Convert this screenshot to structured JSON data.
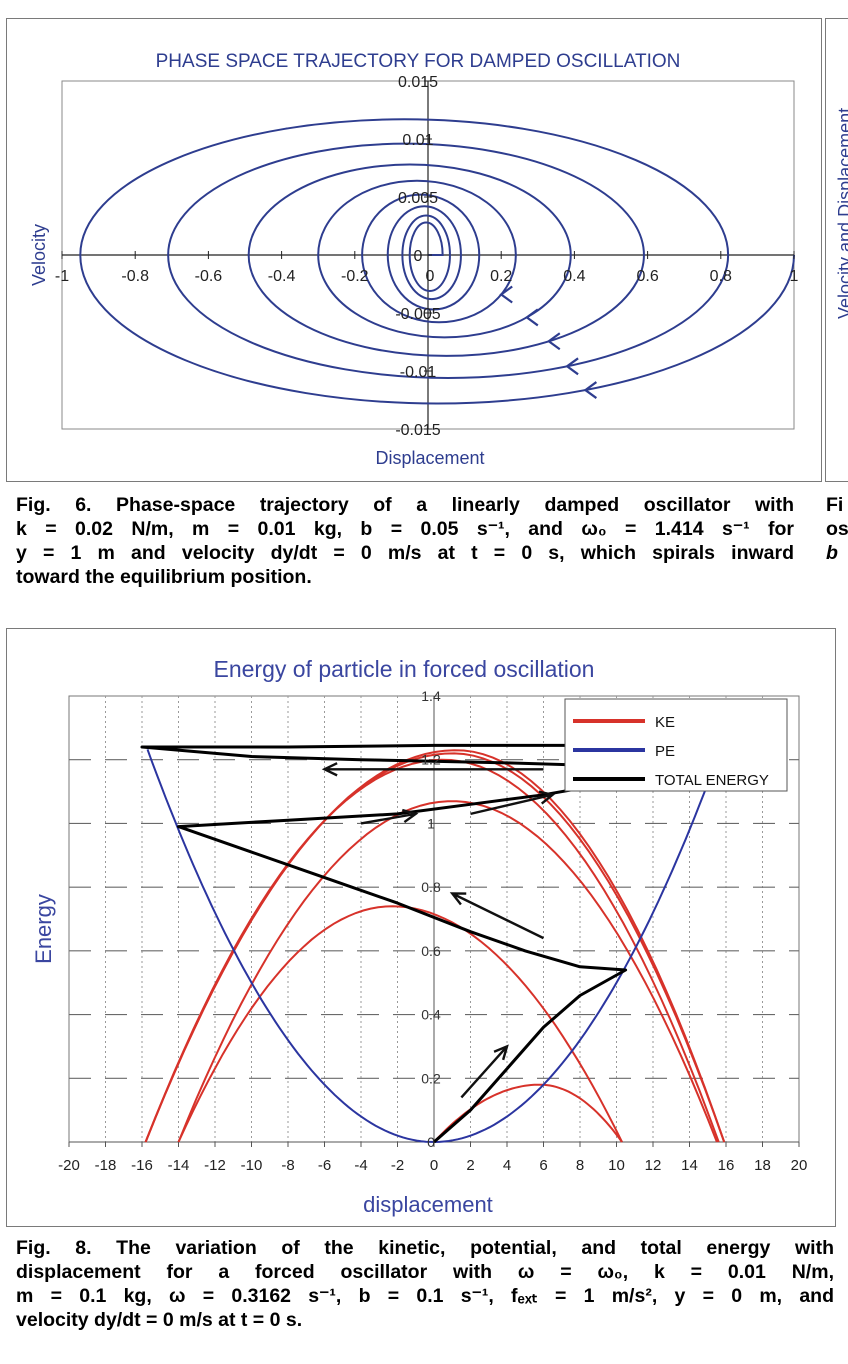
{
  "fig6": {
    "caption_lines": [
      "Fig. 6. Phase-space trajectory of a linearly damped oscillator with",
      "k = 0.02 N/m, m = 0.01 kg, b = 0.05 s⁻¹, and ω₀ = 1.414 s⁻¹ for",
      "y = 1 m and velocity dy/dt = 0 m/s at t = 0 s, which spirals inward",
      "toward the equilibrium position."
    ]
  },
  "fig8": {
    "caption_lines": [
      "Fig. 8. The variation of the kinetic, potential, and total energy with",
      "displacement for a forced oscillator with ω = ω₀, k = 0.01 N/m,",
      "m = 0.1 kg, ω = 0.3162 s⁻¹, b = 0.1 s⁻¹, fₑₓₜ = 1 m/s², y = 0 m, and",
      "velocity dy/dt = 0 m/s at t = 0 s."
    ]
  },
  "side": {
    "axis_label_fragment": "Velocity and Displacement",
    "caption_fragments": [
      "Fi",
      "os",
      "b"
    ]
  },
  "chart_data": [
    {
      "type": "line",
      "title": "PHASE SPACE TRAJECTORY FOR DAMPED OSCILLATION",
      "xlabel": "Displacement",
      "ylabel": "Velocity",
      "xlim": [
        -1,
        1
      ],
      "ylim": [
        -0.015,
        0.015
      ],
      "x_ticks": [
        "-1",
        "-0.8",
        "-0.6",
        "-0.4",
        "-0.2",
        "0",
        "0.2",
        "0.4",
        "0.6",
        "0.8",
        "1"
      ],
      "y_ticks": [
        "0.015",
        "0.01",
        "0.005",
        "0",
        "-0.005",
        "-0.01",
        "-0.015"
      ],
      "color": "#2e3d8f",
      "series": [
        {
          "trajectory": "inward spiral, clockwise",
          "start": [
            1,
            0
          ],
          "end": [
            0,
            0
          ],
          "turning_points_x": [
            1,
            -0.95,
            0.82,
            -0.71,
            0.59,
            -0.49,
            0.39,
            -0.3,
            0.24,
            -0.18,
            0.14,
            -0.11,
            0.09,
            -0.07,
            0.06,
            -0.05,
            0.04
          ],
          "peak_velocity_approx": [
            -0.0128,
            0.0117,
            -0.0106,
            0.0096,
            -0.0087,
            0.0078,
            -0.0071,
            0.0064,
            -0.0058,
            0.0052,
            -0.0047,
            0.0042,
            -0.0038,
            0.0034,
            -0.0031,
            0.0028
          ]
        }
      ],
      "annotations": [
        "arrows along lower half pointing toward -x (clockwise motion)"
      ]
    },
    {
      "type": "line",
      "title": "Energy of particle in forced oscillation",
      "xlabel": "displacement",
      "ylabel": "Energy",
      "xlim": [
        -20,
        20
      ],
      "ylim": [
        0,
        1.4
      ],
      "x_ticks": [
        "-20",
        "-18",
        "-16",
        "-14",
        "-12",
        "-10",
        "-8",
        "-6",
        "-4",
        "-2",
        "0",
        "2",
        "4",
        "6",
        "8",
        "10",
        "12",
        "14",
        "16",
        "18",
        "20"
      ],
      "y_ticks": [
        "1.4",
        "1.2",
        "1",
        "0.8",
        "0.6",
        "0.4",
        "0.2",
        "0"
      ],
      "grid": true,
      "legend_position": "top-right",
      "series": [
        {
          "name": "KE",
          "color": "#d7322a",
          "arches": [
            {
              "x0": 0,
              "x1": 10.3,
              "peak_x": 5.8,
              "peak": 0.18
            },
            {
              "x0": -14,
              "x1": 10.3,
              "peak_x": -2.3,
              "peak": 0.74
            },
            {
              "x0": -14,
              "x1": 15.5,
              "peak_x": 1.0,
              "peak": 1.07
            },
            {
              "x0": -15.8,
              "x1": 15.6,
              "peak_x": 0.5,
              "peak": 1.2
            },
            {
              "x0": -15.8,
              "x1": 15.9,
              "peak_x": 1.0,
              "peak": 1.22
            },
            {
              "x0": -15.8,
              "x1": 15.9,
              "peak_x": 1.2,
              "peak": 1.23
            }
          ]
        },
        {
          "name": "PE",
          "color": "#2b35a0",
          "curve": "0.005 * x^2",
          "x_range": [
            -15.7,
            16.5
          ]
        },
        {
          "name": "TOTAL ENERGY",
          "color": "#000000",
          "points": [
            [
              0,
              0
            ],
            [
              2,
              0.1
            ],
            [
              4,
              0.23
            ],
            [
              6,
              0.36
            ],
            [
              8,
              0.46
            ],
            [
              10.5,
              0.54
            ],
            [
              8,
              0.55
            ],
            [
              5,
              0.6
            ],
            [
              2,
              0.66
            ],
            [
              -2,
              0.75
            ],
            [
              -6,
              0.83
            ],
            [
              -10,
              0.91
            ],
            [
              -14,
              0.99
            ],
            [
              -8,
              1.01
            ],
            [
              -2,
              1.03
            ],
            [
              2,
              1.06
            ],
            [
              6,
              1.09
            ],
            [
              10,
              1.13
            ],
            [
              14,
              1.17
            ],
            [
              10,
              1.18
            ],
            [
              4,
              1.19
            ],
            [
              -4,
              1.2
            ],
            [
              -10,
              1.21
            ],
            [
              -16,
              1.24
            ],
            [
              -8,
              1.24
            ],
            [
              0,
              1.245
            ],
            [
              10,
              1.245
            ],
            [
              18,
              1.25
            ]
          ]
        }
      ],
      "annotations": [
        "arrows indicate direction of motion along the total energy curve"
      ]
    }
  ]
}
